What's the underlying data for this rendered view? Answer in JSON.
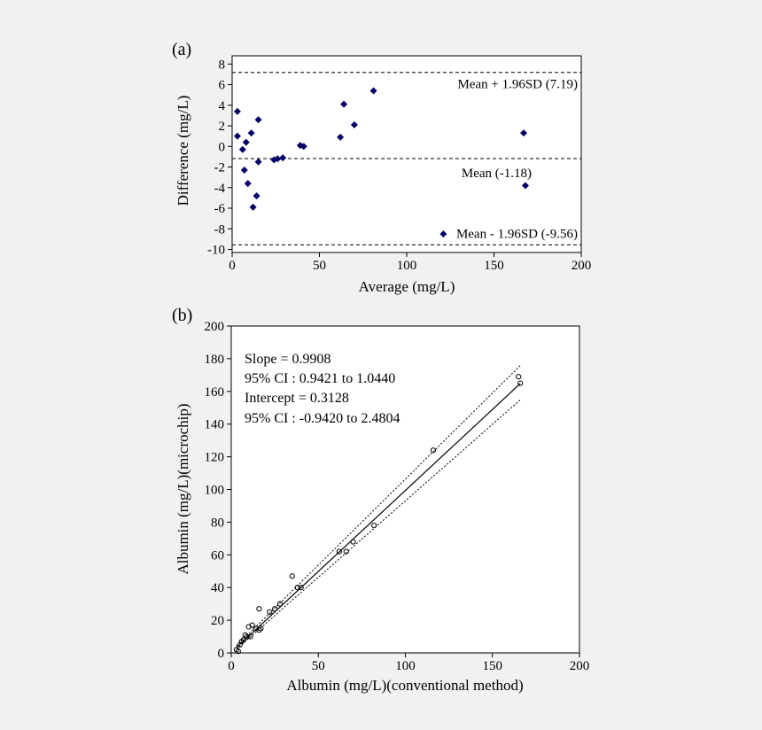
{
  "chart_data": [
    {
      "panel_label": "(a)",
      "type": "scatter",
      "title": "",
      "xlabel": "Average (mg/L)",
      "ylabel": "Difference (mg/L)",
      "xlim": [
        0,
        200
      ],
      "ylim": [
        -10,
        9
      ],
      "xticks": [
        "0",
        "50",
        "100",
        "150",
        "200"
      ],
      "yticks": [
        "8",
        "6",
        "4",
        "2",
        "0",
        "-2",
        "-4",
        "-6",
        "-8",
        "-10"
      ],
      "marker": "filled-diamond",
      "marker_color": "#000066",
      "reference_lines": [
        {
          "label": "Mean + 1.96SD (7.19)",
          "y": 7.19
        },
        {
          "label": "Mean (-1.18)",
          "y": -1.18
        },
        {
          "label": "Mean - 1.96SD (-9.56)",
          "y": -9.56
        }
      ],
      "points": [
        [
          3,
          3.4
        ],
        [
          3,
          1.0
        ],
        [
          6,
          -0.3
        ],
        [
          7,
          -2.3
        ],
        [
          8,
          0.4
        ],
        [
          9,
          -3.6
        ],
        [
          11,
          1.3
        ],
        [
          12,
          -5.9
        ],
        [
          14,
          -4.8
        ],
        [
          15,
          2.6
        ],
        [
          15,
          -1.5
        ],
        [
          24,
          -1.3
        ],
        [
          26,
          -1.2
        ],
        [
          29,
          -1.1
        ],
        [
          39,
          0.1
        ],
        [
          41,
          0.0
        ],
        [
          62,
          0.9
        ],
        [
          64,
          4.1
        ],
        [
          70,
          2.1
        ],
        [
          81,
          5.4
        ],
        [
          121,
          -8.5
        ],
        [
          167,
          1.3
        ],
        [
          168,
          -3.8
        ]
      ]
    },
    {
      "panel_label": "(b)",
      "type": "scatter",
      "title": "",
      "xlabel": "Albumin (mg/L)(conventional method)",
      "ylabel": "Albumin (mg/L)(microchip)",
      "xlim": [
        0,
        200
      ],
      "ylim": [
        0,
        200
      ],
      "xticks": [
        "0",
        "50",
        "100",
        "150",
        "200"
      ],
      "yticks": [
        "200",
        "180",
        "160",
        "140",
        "120",
        "100",
        "80",
        "60",
        "40",
        "20",
        "0"
      ],
      "marker": "open-circle",
      "annotations": [
        "Slope = 0.9908",
        "95% CI : 0.9421 to 1.0440",
        "Intercept = 0.3128",
        "95% CI : -0.9420 to 2.4804"
      ],
      "regression": {
        "slope": 0.9908,
        "intercept": 0.3128,
        "x_range": [
          3,
          166
        ]
      },
      "ci_band": {
        "offset": 7.0
      },
      "points": [
        [
          3,
          2
        ],
        [
          4,
          1
        ],
        [
          5,
          5
        ],
        [
          6,
          7
        ],
        [
          7,
          8
        ],
        [
          8,
          11
        ],
        [
          9,
          10
        ],
        [
          10,
          16
        ],
        [
          12,
          17
        ],
        [
          11,
          10
        ],
        [
          14,
          15
        ],
        [
          16,
          27
        ],
        [
          16,
          14
        ],
        [
          17,
          15
        ],
        [
          22,
          25
        ],
        [
          25,
          27
        ],
        [
          28,
          30
        ],
        [
          35,
          47
        ],
        [
          38,
          40
        ],
        [
          40,
          40
        ],
        [
          62,
          62
        ],
        [
          66,
          62
        ],
        [
          70,
          68
        ],
        [
          82,
          78
        ],
        [
          116,
          124
        ],
        [
          165,
          169
        ],
        [
          166,
          165
        ]
      ]
    }
  ]
}
